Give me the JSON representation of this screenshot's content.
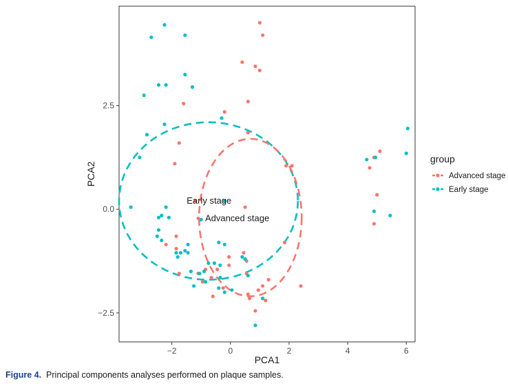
{
  "chart_data": {
    "type": "scatter",
    "xlabel": "PCA1",
    "ylabel": "PCA2",
    "xlim": [
      -3.8,
      6.3
    ],
    "ylim": [
      -3.2,
      4.9
    ],
    "x_ticks": [
      -2,
      0,
      2,
      4,
      6
    ],
    "y_ticks": [
      -2.5,
      0.0,
      2.5
    ],
    "x_tick_labels": [
      "−2",
      "0",
      "2",
      "4",
      "6"
    ],
    "y_tick_labels": [
      "−2.5",
      "0.0",
      "2.5"
    ],
    "grid": false,
    "legend": {
      "title": "group",
      "position": "right",
      "entries": [
        "Advanced stage",
        "Early stage"
      ]
    },
    "colors": {
      "Advanced stage": "#f8766d",
      "Early stage": "#00bfc4"
    },
    "annotations": [
      {
        "text": "Early stage",
        "x": -0.2,
        "y": 0.2
      },
      {
        "text": "Advanced stage",
        "x": -1.1,
        "y": -0.22
      }
    ],
    "ellipses": [
      {
        "series": "Early stage",
        "cx": -0.75,
        "cy": 0.2,
        "rx": 3.05,
        "ry": 1.9,
        "style": "dashed"
      },
      {
        "series": "Advanced stage",
        "cx": 0.68,
        "cy": -0.2,
        "rx": 1.75,
        "ry": 1.9,
        "style": "dashed"
      }
    ],
    "series": [
      {
        "name": "Advanced stage",
        "points": [
          [
            1.0,
            4.5
          ],
          [
            1.1,
            4.2
          ],
          [
            0.4,
            3.55
          ],
          [
            0.85,
            3.45
          ],
          [
            1.0,
            3.35
          ],
          [
            0.6,
            2.6
          ],
          [
            -1.6,
            2.55
          ],
          [
            -0.2,
            2.35
          ],
          [
            0.6,
            1.85
          ],
          [
            -1.75,
            1.6
          ],
          [
            -1.9,
            1.1
          ],
          [
            1.9,
            1.05
          ],
          [
            2.1,
            1.05
          ],
          [
            4.9,
            1.25
          ],
          [
            5.1,
            1.4
          ],
          [
            4.75,
            1.0
          ],
          [
            -1.2,
            0.2
          ],
          [
            0.5,
            0.05
          ],
          [
            5.0,
            0.35
          ],
          [
            4.9,
            -0.35
          ],
          [
            -1.85,
            -0.65
          ],
          [
            -2.2,
            -0.85
          ],
          [
            -1.85,
            -0.95
          ],
          [
            1.85,
            -0.8
          ],
          [
            0.45,
            -1.05
          ],
          [
            -0.05,
            -1.15
          ],
          [
            0.55,
            -1.25
          ],
          [
            -0.05,
            -1.35
          ],
          [
            -0.45,
            -1.45
          ],
          [
            -0.85,
            -1.45
          ],
          [
            -1.1,
            -1.55
          ],
          [
            -1.75,
            -1.55
          ],
          [
            -0.65,
            -1.65
          ],
          [
            -0.95,
            -1.75
          ],
          [
            0.55,
            -1.55
          ],
          [
            1.3,
            -1.7
          ],
          [
            1.1,
            -1.85
          ],
          [
            2.4,
            -1.85
          ],
          [
            -0.25,
            -1.9
          ],
          [
            0.95,
            -1.95
          ],
          [
            0.6,
            -2.05
          ],
          [
            -0.6,
            -2.1
          ],
          [
            0.65,
            -2.15
          ],
          [
            1.2,
            -2.2
          ],
          [
            0.85,
            -2.45
          ]
        ]
      },
      {
        "name": "Early stage",
        "points": [
          [
            -2.25,
            4.45
          ],
          [
            -2.7,
            4.15
          ],
          [
            -1.55,
            4.2
          ],
          [
            -2.45,
            3.0
          ],
          [
            -2.2,
            3.0
          ],
          [
            -1.55,
            3.25
          ],
          [
            -1.3,
            2.95
          ],
          [
            -2.95,
            2.75
          ],
          [
            -2.25,
            2.05
          ],
          [
            -0.3,
            2.2
          ],
          [
            -2.85,
            1.8
          ],
          [
            -3.1,
            1.25
          ],
          [
            6.05,
            1.95
          ],
          [
            6.0,
            1.35
          ],
          [
            4.65,
            1.2
          ],
          [
            4.95,
            1.25
          ],
          [
            -3.4,
            0.05
          ],
          [
            -2.2,
            0.05
          ],
          [
            -2.45,
            -0.2
          ],
          [
            -2.1,
            -0.2
          ],
          [
            -2.35,
            -0.15
          ],
          [
            -1.0,
            -0.25
          ],
          [
            4.9,
            -0.05
          ],
          [
            5.45,
            -0.15
          ],
          [
            -2.45,
            -0.5
          ],
          [
            -2.5,
            -0.65
          ],
          [
            -2.35,
            -0.75
          ],
          [
            -1.45,
            -0.85
          ],
          [
            -0.4,
            -0.8
          ],
          [
            -0.2,
            -0.85
          ],
          [
            -1.85,
            -1.05
          ],
          [
            -1.7,
            -1.05
          ],
          [
            -1.55,
            -1.0
          ],
          [
            -1.8,
            -1.15
          ],
          [
            -1.45,
            -1.05
          ],
          [
            -0.75,
            -1.3
          ],
          [
            -0.55,
            -1.3
          ],
          [
            -0.35,
            -1.35
          ],
          [
            -1.35,
            -1.5
          ],
          [
            -0.9,
            -1.5
          ],
          [
            0.4,
            -1.15
          ],
          [
            0.5,
            -1.2
          ],
          [
            -1.05,
            -1.55
          ],
          [
            -0.35,
            -1.65
          ],
          [
            0.6,
            -1.6
          ],
          [
            -0.85,
            -1.75
          ],
          [
            -1.25,
            -1.85
          ],
          [
            -0.4,
            -1.9
          ],
          [
            0.05,
            -1.95
          ],
          [
            1.1,
            -2.15
          ],
          [
            -0.2,
            -2.0
          ],
          [
            0.85,
            -2.8
          ]
        ]
      }
    ]
  },
  "caption": {
    "label": "Figure 4.",
    "text": "Principal components analyses performed on plaque samples."
  }
}
